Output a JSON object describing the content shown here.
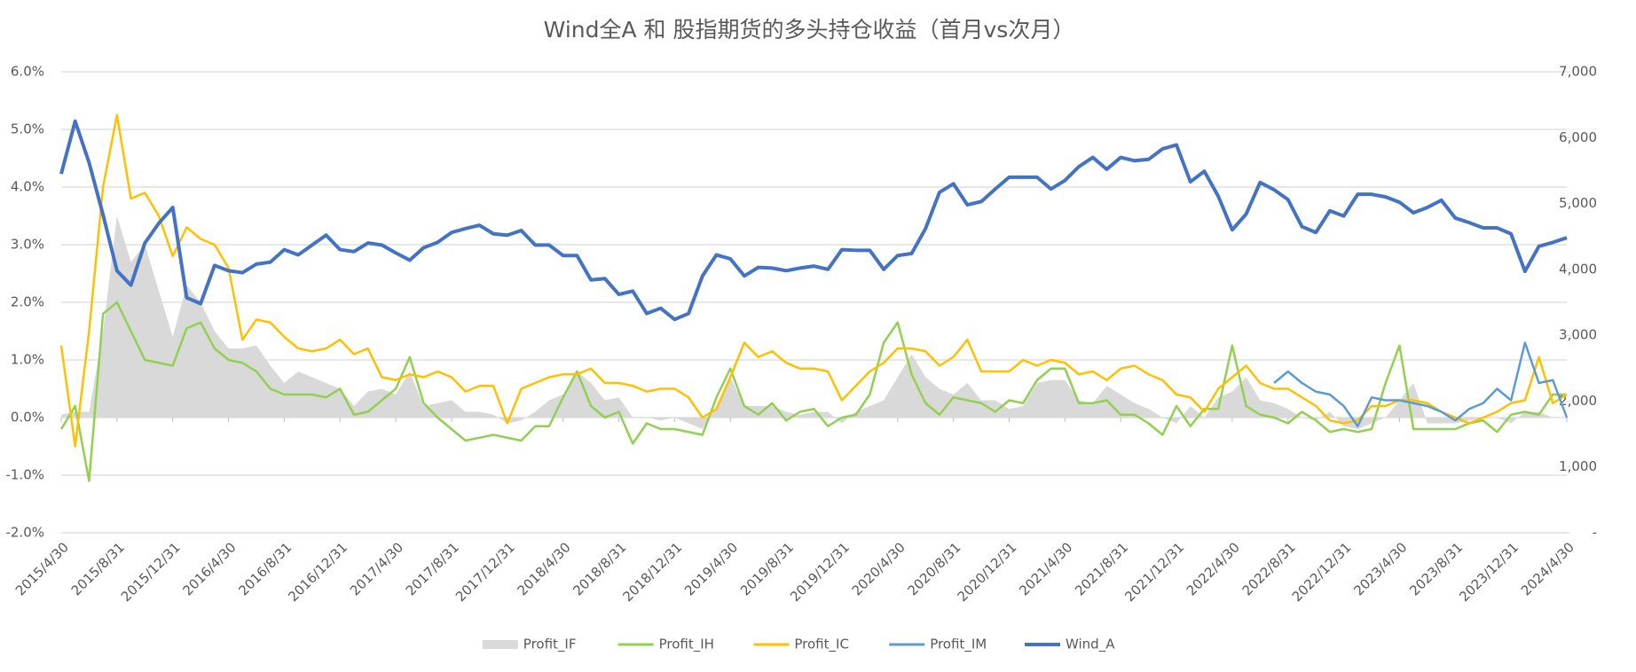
{
  "chart_data": {
    "type": "line",
    "title": "Wind全A 和 股指期货的多头持仓收益（首月vs次月）",
    "categories": [
      "2015/4/30",
      null,
      null,
      null,
      "2015/8/31",
      null,
      null,
      null,
      "2015/12/31",
      null,
      null,
      null,
      "2016/4/30",
      null,
      null,
      null,
      "2016/8/31",
      null,
      null,
      null,
      "2016/12/31",
      null,
      null,
      null,
      "2017/4/30",
      null,
      null,
      null,
      "2017/8/31",
      null,
      null,
      null,
      "2017/12/31",
      null,
      null,
      null,
      "2018/4/30",
      null,
      null,
      null,
      "2018/8/31",
      null,
      null,
      null,
      "2018/12/31",
      null,
      null,
      null,
      "2019/4/30",
      null,
      null,
      null,
      "2019/8/31",
      null,
      null,
      null,
      "2019/12/31",
      null,
      null,
      null,
      "2020/4/30",
      null,
      null,
      null,
      "2020/8/31",
      null,
      null,
      null,
      "2020/12/31",
      null,
      null,
      null,
      "2021/4/30",
      null,
      null,
      null,
      "2021/8/31",
      null,
      null,
      null,
      "2021/12/31",
      null,
      null,
      null,
      "2022/4/30",
      null,
      null,
      null,
      "2022/8/31",
      null,
      null,
      null,
      "2022/12/31",
      null,
      null,
      null,
      "2023/4/30",
      null,
      null,
      null,
      "2023/8/31",
      null,
      null,
      null,
      "2023/12/31",
      null,
      null,
      null,
      "2024/4/30"
    ],
    "series": [
      {
        "name": "Profit_IF",
        "color": "#d9d9d9",
        "style": "area",
        "values": [
          0.05,
          0.1,
          0.1,
          1.5,
          3.5,
          2.7,
          3.0,
          2.2,
          1.4,
          2.3,
          2.0,
          1.5,
          1.2,
          1.2,
          1.25,
          0.9,
          0.6,
          0.8,
          0.7,
          0.6,
          0.5,
          0.2,
          0.45,
          0.5,
          0.4,
          0.8,
          0.2,
          0.25,
          0.3,
          0.1,
          0.1,
          0.05,
          -0.1,
          -0.05,
          0.1,
          0.3,
          0.4,
          0.8,
          0.6,
          0.3,
          0.35,
          0.0,
          0.0,
          -0.05,
          0.0,
          -0.1,
          -0.2,
          0.2,
          0.7,
          0.2,
          0.2,
          0.2,
          0.1,
          0.05,
          0.1,
          0.1,
          -0.1,
          0.1,
          0.2,
          0.3,
          0.7,
          1.1,
          0.7,
          0.5,
          0.4,
          0.6,
          0.3,
          0.3,
          0.15,
          0.2,
          0.6,
          0.65,
          0.65,
          0.3,
          0.25,
          0.55,
          0.4,
          0.25,
          0.15,
          0.0,
          -0.1,
          0.2,
          0.0,
          0.35,
          0.45,
          0.7,
          0.3,
          0.25,
          0.15,
          0.0,
          -0.05,
          0.1,
          -0.15,
          -0.2,
          -0.1,
          0.0,
          0.3,
          0.6,
          -0.1,
          -0.1,
          -0.1,
          -0.05,
          0.0,
          0.0,
          -0.1,
          0.1,
          0.1,
          0.0,
          0.0
        ]
      },
      {
        "name": "Profit_IH",
        "color": "#92d050",
        "style": "line",
        "values": [
          -0.2,
          0.2,
          -1.1,
          1.8,
          2.0,
          1.5,
          1.0,
          0.95,
          0.9,
          1.55,
          1.65,
          1.2,
          1.0,
          0.95,
          0.8,
          0.5,
          0.4,
          0.4,
          0.4,
          0.35,
          0.5,
          0.05,
          0.1,
          0.3,
          0.5,
          1.05,
          0.25,
          0.0,
          -0.2,
          -0.4,
          -0.35,
          -0.3,
          -0.35,
          -0.4,
          -0.15,
          -0.15,
          0.35,
          0.8,
          0.2,
          0.0,
          0.1,
          -0.45,
          -0.1,
          -0.2,
          -0.2,
          -0.25,
          -0.3,
          0.35,
          0.85,
          0.2,
          0.05,
          0.25,
          -0.05,
          0.1,
          0.15,
          -0.15,
          0.0,
          0.05,
          0.4,
          1.3,
          1.65,
          0.75,
          0.25,
          0.05,
          0.35,
          0.3,
          0.25,
          0.1,
          0.3,
          0.25,
          0.65,
          0.85,
          0.85,
          0.25,
          0.25,
          0.3,
          0.05,
          0.05,
          -0.1,
          -0.3,
          0.2,
          -0.15,
          0.15,
          0.15,
          1.25,
          0.2,
          0.05,
          0.0,
          -0.1,
          0.1,
          -0.05,
          -0.25,
          -0.2,
          -0.25,
          -0.2,
          0.6,
          1.25,
          -0.2,
          -0.2,
          -0.2,
          -0.2,
          -0.1,
          -0.05,
          -0.25,
          0.05,
          0.1,
          0.05,
          0.4,
          0.4
        ]
      },
      {
        "name": "Profit_IC",
        "color": "#ffc000",
        "style": "line",
        "values": [
          1.25,
          -0.5,
          1.5,
          4.0,
          5.25,
          3.8,
          3.9,
          3.5,
          2.8,
          3.3,
          3.1,
          3.0,
          2.6,
          1.35,
          1.7,
          1.65,
          1.4,
          1.2,
          1.15,
          1.2,
          1.35,
          1.1,
          1.2,
          0.7,
          0.65,
          0.75,
          0.7,
          0.8,
          0.7,
          0.45,
          0.55,
          0.55,
          -0.1,
          0.5,
          0.6,
          0.7,
          0.75,
          0.75,
          0.85,
          0.6,
          0.6,
          0.55,
          0.45,
          0.5,
          0.5,
          0.35,
          0.0,
          0.15,
          0.7,
          1.3,
          1.05,
          1.15,
          0.95,
          0.85,
          0.85,
          0.8,
          0.3,
          0.55,
          0.8,
          0.95,
          1.2,
          1.2,
          1.15,
          0.9,
          1.05,
          1.35,
          0.8,
          0.8,
          0.8,
          1.0,
          0.9,
          1.0,
          0.95,
          0.75,
          0.8,
          0.65,
          0.85,
          0.9,
          0.75,
          0.65,
          0.4,
          0.35,
          0.1,
          0.5,
          0.7,
          0.9,
          0.6,
          0.5,
          0.5,
          0.35,
          0.2,
          -0.05,
          -0.1,
          -0.05,
          0.2,
          0.2,
          0.3,
          0.3,
          0.25,
          0.1,
          0.0,
          -0.1,
          0.0,
          0.1,
          0.25,
          0.3,
          1.05,
          0.25,
          0.4
        ]
      },
      {
        "name": "Profit_IM",
        "color": "#5b9bd5",
        "style": "line",
        "values": [
          null,
          null,
          null,
          null,
          null,
          null,
          null,
          null,
          null,
          null,
          null,
          null,
          null,
          null,
          null,
          null,
          null,
          null,
          null,
          null,
          null,
          null,
          null,
          null,
          null,
          null,
          null,
          null,
          null,
          null,
          null,
          null,
          null,
          null,
          null,
          null,
          null,
          null,
          null,
          null,
          null,
          null,
          null,
          null,
          null,
          null,
          null,
          null,
          null,
          null,
          null,
          null,
          null,
          null,
          null,
          null,
          null,
          null,
          null,
          null,
          null,
          null,
          null,
          null,
          null,
          null,
          null,
          null,
          null,
          null,
          null,
          null,
          null,
          null,
          null,
          null,
          null,
          null,
          null,
          null,
          null,
          null,
          null,
          null,
          null,
          null,
          null,
          0.6,
          0.8,
          0.6,
          0.45,
          0.4,
          0.2,
          -0.15,
          0.35,
          0.3,
          0.3,
          0.25,
          0.2,
          0.1,
          -0.05,
          0.15,
          0.25,
          0.5,
          0.3,
          1.3,
          0.6,
          0.65,
          0.0
        ]
      },
      {
        "name": "Wind_A",
        "color": "#4472c4",
        "style": "line",
        "axis": "y2",
        "values": [
          5450,
          6250,
          5620,
          4830,
          3980,
          3760,
          4400,
          4700,
          4940,
          3570,
          3480,
          4060,
          3980,
          3950,
          4080,
          4110,
          4300,
          4220,
          4370,
          4520,
          4300,
          4270,
          4400,
          4370,
          4250,
          4140,
          4330,
          4410,
          4560,
          4620,
          4670,
          4540,
          4520,
          4590,
          4370,
          4370,
          4210,
          4210,
          3840,
          3860,
          3620,
          3670,
          3330,
          3410,
          3240,
          3330,
          3900,
          4220,
          4160,
          3900,
          4030,
          4020,
          3980,
          4020,
          4050,
          4000,
          4300,
          4290,
          4290,
          4000,
          4210,
          4240,
          4620,
          5170,
          5300,
          4980,
          5030,
          5220,
          5400,
          5400,
          5400,
          5220,
          5350,
          5560,
          5700,
          5520,
          5700,
          5650,
          5670,
          5830,
          5890,
          5330,
          5490,
          5110,
          4600,
          4840,
          5320,
          5210,
          5060,
          4650,
          4560,
          4890,
          4810,
          5140,
          5140,
          5100,
          5020,
          4860,
          4940,
          5050,
          4780,
          4710,
          4630,
          4630,
          4540,
          3970,
          4350,
          4410,
          4480
        ]
      }
    ],
    "ylim": [
      -2,
      6
    ],
    "yticks": [
      {
        "value": -2,
        "label": "-2.0%"
      },
      {
        "value": -1,
        "label": "-1.0%"
      },
      {
        "value": 0,
        "label": "0.0%"
      },
      {
        "value": 1,
        "label": "1.0%"
      },
      {
        "value": 2,
        "label": "2.0%"
      },
      {
        "value": 3,
        "label": "3.0%"
      },
      {
        "value": 4,
        "label": "4.0%"
      },
      {
        "value": 5,
        "label": "5.0%"
      },
      {
        "value": 6,
        "label": "6.0%"
      }
    ],
    "y2lim": [
      0,
      7000
    ],
    "y2ticks": [
      {
        "value": 0,
        "label": "-"
      },
      {
        "value": 1000,
        "label": "1,000"
      },
      {
        "value": 2000,
        "label": "2,000"
      },
      {
        "value": 3000,
        "label": "3,000"
      },
      {
        "value": 4000,
        "label": "4,000"
      },
      {
        "value": 5000,
        "label": "5,000"
      },
      {
        "value": 6000,
        "label": "6,000"
      },
      {
        "value": 7000,
        "label": "7,000"
      }
    ],
    "grid": true,
    "legend": "bottom"
  }
}
